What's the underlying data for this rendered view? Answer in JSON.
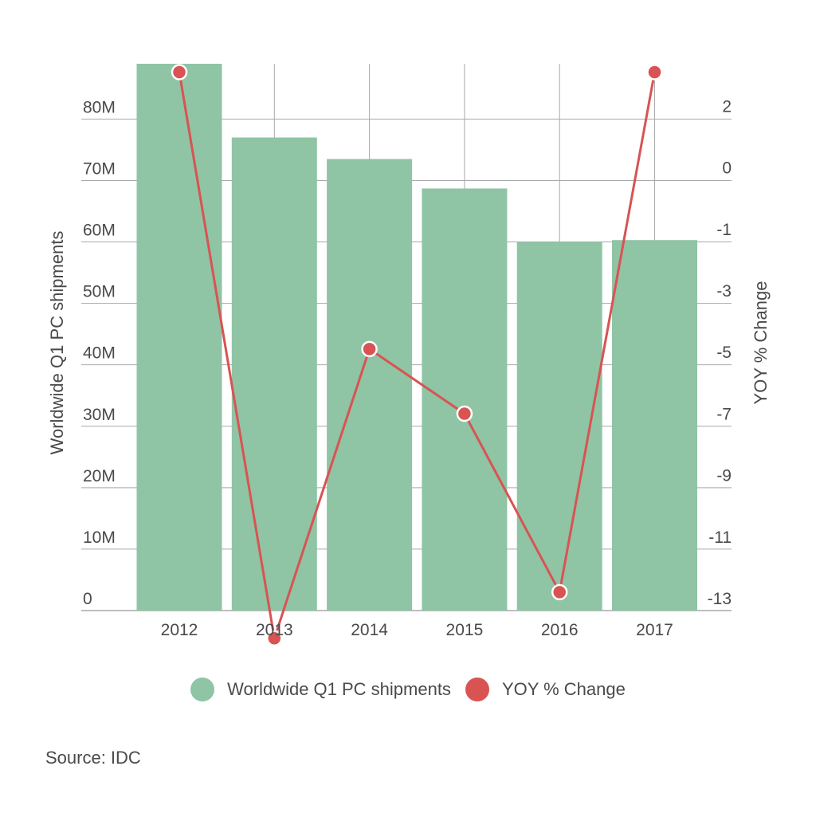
{
  "chart_data": {
    "type": "bar+line",
    "categories": [
      "2012",
      "2013",
      "2014",
      "2015",
      "2016",
      "2017"
    ],
    "series": [
      {
        "name": "Worldwide Q1 PC shipments",
        "type": "bar",
        "axis": "left",
        "values": [
          89000000,
          77000000,
          73500000,
          68700000,
          60000000,
          60300000
        ]
      },
      {
        "name": "YOY % Change",
        "type": "line",
        "axis": "right",
        "values": [
          3.5,
          -13.9,
          -4.5,
          -6.6,
          -12.4,
          3.5
        ]
      }
    ],
    "y_left": {
      "label": "Worldwide Q1 PC shipments",
      "range": [
        0,
        89000000
      ],
      "ticks": [
        0,
        10000000,
        20000000,
        30000000,
        40000000,
        50000000,
        60000000,
        70000000,
        80000000
      ],
      "tick_labels": [
        "0",
        "10M",
        "20M",
        "30M",
        "40M",
        "50M",
        "60M",
        "70M",
        "80M"
      ]
    },
    "y_right": {
      "label": "YOY % Change",
      "tick_labels": [
        "-13",
        "-11",
        "-9",
        "-7",
        "-5",
        "-3",
        "-1",
        "0",
        "2"
      ]
    },
    "grid": true,
    "legend_position": "bottom",
    "colors": {
      "bar": "#8fc4a5",
      "line": "#d95353",
      "grid": "#a9a9a9",
      "text": "#4a4a4a"
    }
  },
  "legend": {
    "items": [
      {
        "label": "Worldwide Q1 PC shipments",
        "color": "#8fc4a5"
      },
      {
        "label": "YOY % Change",
        "color": "#d95353"
      }
    ]
  },
  "source": "Source: IDC"
}
